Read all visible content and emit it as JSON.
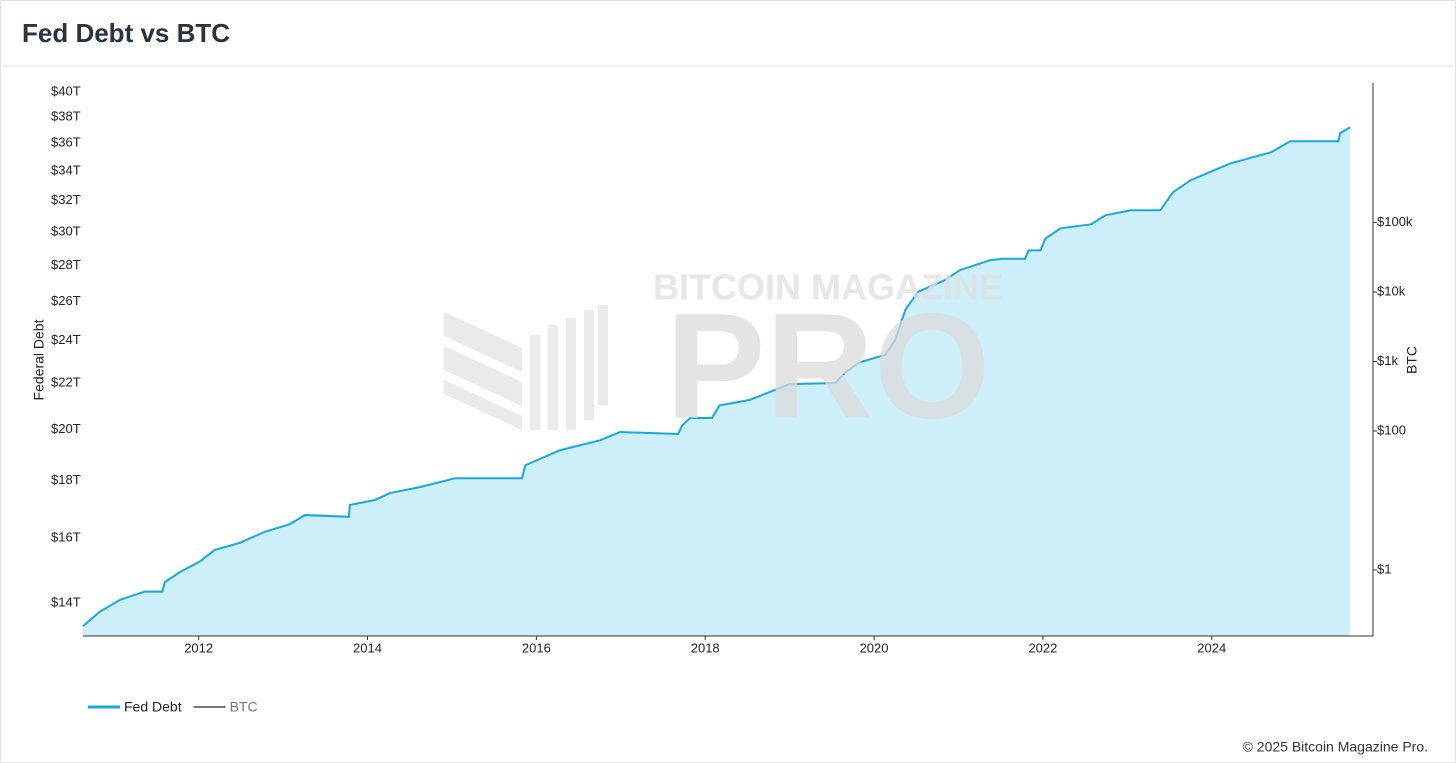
{
  "title": "Fed Debt vs BTC",
  "footer": "© 2025 Bitcoin Magazine Pro.",
  "watermark": {
    "top": "BITCOIN MAGAZINE",
    "main": "PRO"
  },
  "chart_data": {
    "type": "area",
    "ylabel": "Federal Debt",
    "y2label": "BTC",
    "log_y": true,
    "log_y2": true,
    "grid": false,
    "legend": "bottom-left",
    "x": [
      2010.63,
      2010.83,
      2011.07,
      2011.36,
      2011.57,
      2011.6,
      2011.78,
      2012.01,
      2012.19,
      2012.49,
      2012.78,
      2013.08,
      2013.26,
      2013.78,
      2013.79,
      2014.09,
      2014.27,
      2014.62,
      2015.04,
      2015.83,
      2015.87,
      2016.28,
      2016.76,
      2016.99,
      2017.68,
      2017.73,
      2017.82,
      2018.08,
      2018.17,
      2018.53,
      2019.0,
      2019.54,
      2019.66,
      2019.83,
      2020.13,
      2020.25,
      2020.37,
      2020.52,
      2020.84,
      2021.02,
      2021.38,
      2021.53,
      2021.79,
      2021.83,
      2021.97,
      2022.03,
      2022.21,
      2022.57,
      2022.74,
      2023.04,
      2023.39,
      2023.54,
      2023.75,
      2024.22,
      2024.7,
      2024.93,
      2025.5,
      2025.52,
      2025.64
    ],
    "series": [
      {
        "name": "Fed Debt",
        "color": "#1aa7dc",
        "fill": "#cdeffa",
        "values": [
          13.35,
          13.75,
          14.09,
          14.33,
          14.33,
          14.61,
          14.92,
          15.24,
          15.61,
          15.84,
          16.2,
          16.46,
          16.77,
          16.71,
          17.12,
          17.3,
          17.55,
          17.76,
          18.09,
          18.09,
          18.58,
          19.16,
          19.56,
          19.89,
          19.81,
          20.17,
          20.47,
          20.47,
          21.01,
          21.25,
          21.95,
          22.0,
          22.49,
          22.96,
          23.3,
          24.02,
          25.56,
          26.53,
          27.18,
          27.75,
          28.32,
          28.4,
          28.4,
          28.89,
          28.89,
          29.6,
          30.23,
          30.48,
          31.05,
          31.37,
          31.37,
          32.55,
          33.37,
          34.54,
          35.34,
          36.15,
          36.15,
          36.75,
          37.21
        ]
      },
      {
        "name": "BTC",
        "color": "#777777",
        "axis": "y2",
        "hidden": true,
        "values": [
          null,
          null,
          null,
          null,
          null,
          null,
          null,
          null,
          null,
          null,
          null,
          null,
          null,
          null,
          null,
          null,
          null,
          null,
          null,
          null,
          null,
          null,
          null,
          null,
          null,
          null,
          null,
          null,
          null,
          null,
          null,
          null,
          null,
          null,
          null,
          null,
          null,
          null,
          null,
          null,
          null,
          null,
          null,
          null,
          null,
          null,
          null,
          null,
          null,
          null,
          null,
          null,
          null,
          null,
          null,
          null,
          null,
          null,
          null
        ]
      }
    ],
    "xlim": [
      2010.63,
      2025.91
    ],
    "xticks": [
      2012,
      2014,
      2016,
      2018,
      2020,
      2022,
      2024
    ],
    "ylim": [
      13.08,
      40.75
    ],
    "yticks": [
      {
        "value": 14,
        "label": "$14T"
      },
      {
        "value": 16,
        "label": "$16T"
      },
      {
        "value": 18,
        "label": "$18T"
      },
      {
        "value": 20,
        "label": "$20T"
      },
      {
        "value": 22,
        "label": "$22T"
      },
      {
        "value": 24,
        "label": "$24T"
      },
      {
        "value": 26,
        "label": "$26T"
      },
      {
        "value": 28,
        "label": "$28T"
      },
      {
        "value": 30,
        "label": "$30T"
      },
      {
        "value": 32,
        "label": "$32T"
      },
      {
        "value": 34,
        "label": "$34T"
      },
      {
        "value": 36,
        "label": "$36T"
      },
      {
        "value": 38,
        "label": "$38T"
      },
      {
        "value": 40,
        "label": "$40T"
      }
    ],
    "y2lim": [
      0.112,
      10200000
    ],
    "y2ticks": [
      {
        "value": 1,
        "label": "$1"
      },
      {
        "value": 100,
        "label": "$100"
      },
      {
        "value": 1000,
        "label": "$1k"
      },
      {
        "value": 10000,
        "label": "$10k"
      },
      {
        "value": 100000,
        "label": "$100k"
      }
    ]
  }
}
